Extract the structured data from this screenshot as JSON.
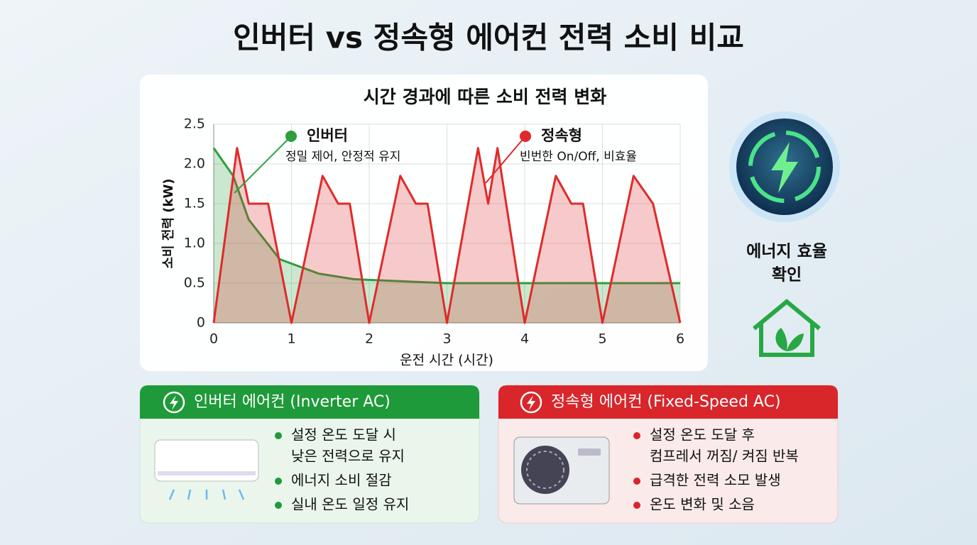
{
  "header": {
    "title": "인버터 vs 정속형 에어컨 전력 소비 비교"
  },
  "chart_data": {
    "type": "line",
    "title": "시간 경과에 따른 소비 전력 변화",
    "x_label": "운전 시간 (시간)",
    "y_label": "소비 전력 (kW)",
    "xlim": [
      0,
      6
    ],
    "ylim": [
      0,
      2.5
    ],
    "xticks": [
      0,
      1,
      2,
      3,
      4,
      5,
      6
    ],
    "yticks": [
      0,
      0.5,
      {
        "value": 1,
        "label": "1.0"
      },
      1.5,
      {
        "value": 2,
        "label": "2.0"
      },
      2.5
    ],
    "grid": true,
    "series": [
      {
        "name": "인버터",
        "color": "#2e9e3e",
        "note": "정밀 제어, 안정적 유지",
        "x": [
          0,
          0.25,
          0.45,
          0.85,
          1.35,
          1.8,
          2.5,
          3,
          4,
          5,
          6
        ],
        "values": [
          2.2,
          1.85,
          1.3,
          0.8,
          0.62,
          0.55,
          0.52,
          0.5,
          0.5,
          0.5,
          0.5
        ]
      },
      {
        "name": "정속형",
        "color": "#e02a2a",
        "note": "빈번한 On/Off, 비효율",
        "x": [
          0,
          0.3,
          0.45,
          0.7,
          1,
          1.4,
          1.6,
          1.75,
          2,
          2.4,
          2.6,
          2.75,
          3,
          3.4,
          3.53,
          3.65,
          4,
          4.4,
          4.6,
          4.75,
          5,
          5.4,
          5.65,
          6
        ],
        "values": [
          0,
          2.2,
          1.5,
          1.5,
          0,
          1.85,
          1.5,
          1.5,
          0,
          1.85,
          1.5,
          1.5,
          0,
          2.2,
          1.5,
          2.2,
          0,
          1.85,
          1.5,
          1.5,
          0,
          1.85,
          1.5,
          0
        ]
      }
    ]
  },
  "side": {
    "label_lines": [
      "에너지 효율",
      "확인"
    ]
  },
  "cards": [
    {
      "title": "인버터 에어컨 (Inverter AC)",
      "bullets": [
        [
          "설정 온도 도달 시",
          "낮은 전력으로 유지"
        ],
        [
          "에너지 소비 절감"
        ],
        [
          "실내 온도 일정 유지"
        ]
      ]
    },
    {
      "title": "정속형 에어컨 (Fixed-Speed AC)",
      "bullets": [
        [
          "설정 온도 도달 후",
          "컴프레서 꺼짐/ 켜짐 반복"
        ],
        [
          "급격한 전력 소모 발생"
        ],
        [
          "온도 변화 및 소음"
        ]
      ]
    }
  ]
}
